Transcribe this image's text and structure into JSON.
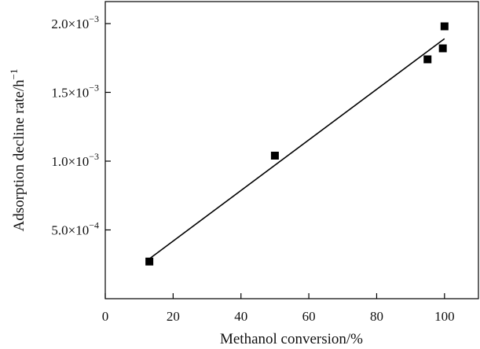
{
  "chart_data": {
    "type": "scatter",
    "title": "",
    "xlabel": "Methanol conversion/%",
    "ylabel": "Adsorption decline rate/h",
    "ylabel_sup": "−1",
    "xlim": [
      0,
      110
    ],
    "ylim": [
      0,
      0.00216
    ],
    "grid": false,
    "legend": "none",
    "x_ticks": [
      {
        "value": 0,
        "label": "0"
      },
      {
        "value": 20,
        "label": "20"
      },
      {
        "value": 40,
        "label": "40"
      },
      {
        "value": 60,
        "label": "60"
      },
      {
        "value": 80,
        "label": "80"
      },
      {
        "value": 100,
        "label": "100"
      }
    ],
    "y_ticks": [
      {
        "value": 0.0005,
        "mantissa": "5.0×10",
        "exp": "−4"
      },
      {
        "value": 0.001,
        "mantissa": "1.0×10",
        "exp": "−3"
      },
      {
        "value": 0.0015,
        "mantissa": "1.5×10",
        "exp": "−3"
      },
      {
        "value": 0.002,
        "mantissa": "2.0×10",
        "exp": "−3"
      }
    ],
    "series": [
      {
        "points": [
          {
            "x": 13,
            "y": 0.00027
          },
          {
            "x": 50,
            "y": 0.00104
          },
          {
            "x": 95,
            "y": 0.00174
          },
          {
            "x": 99.5,
            "y": 0.00182
          },
          {
            "x": 100,
            "y": 0.00198
          }
        ],
        "marker": "square",
        "color": "#000000"
      }
    ],
    "fit_line": {
      "x": [
        13,
        100
      ],
      "y": [
        0.00029,
        0.00189
      ],
      "color": "#000000"
    }
  }
}
